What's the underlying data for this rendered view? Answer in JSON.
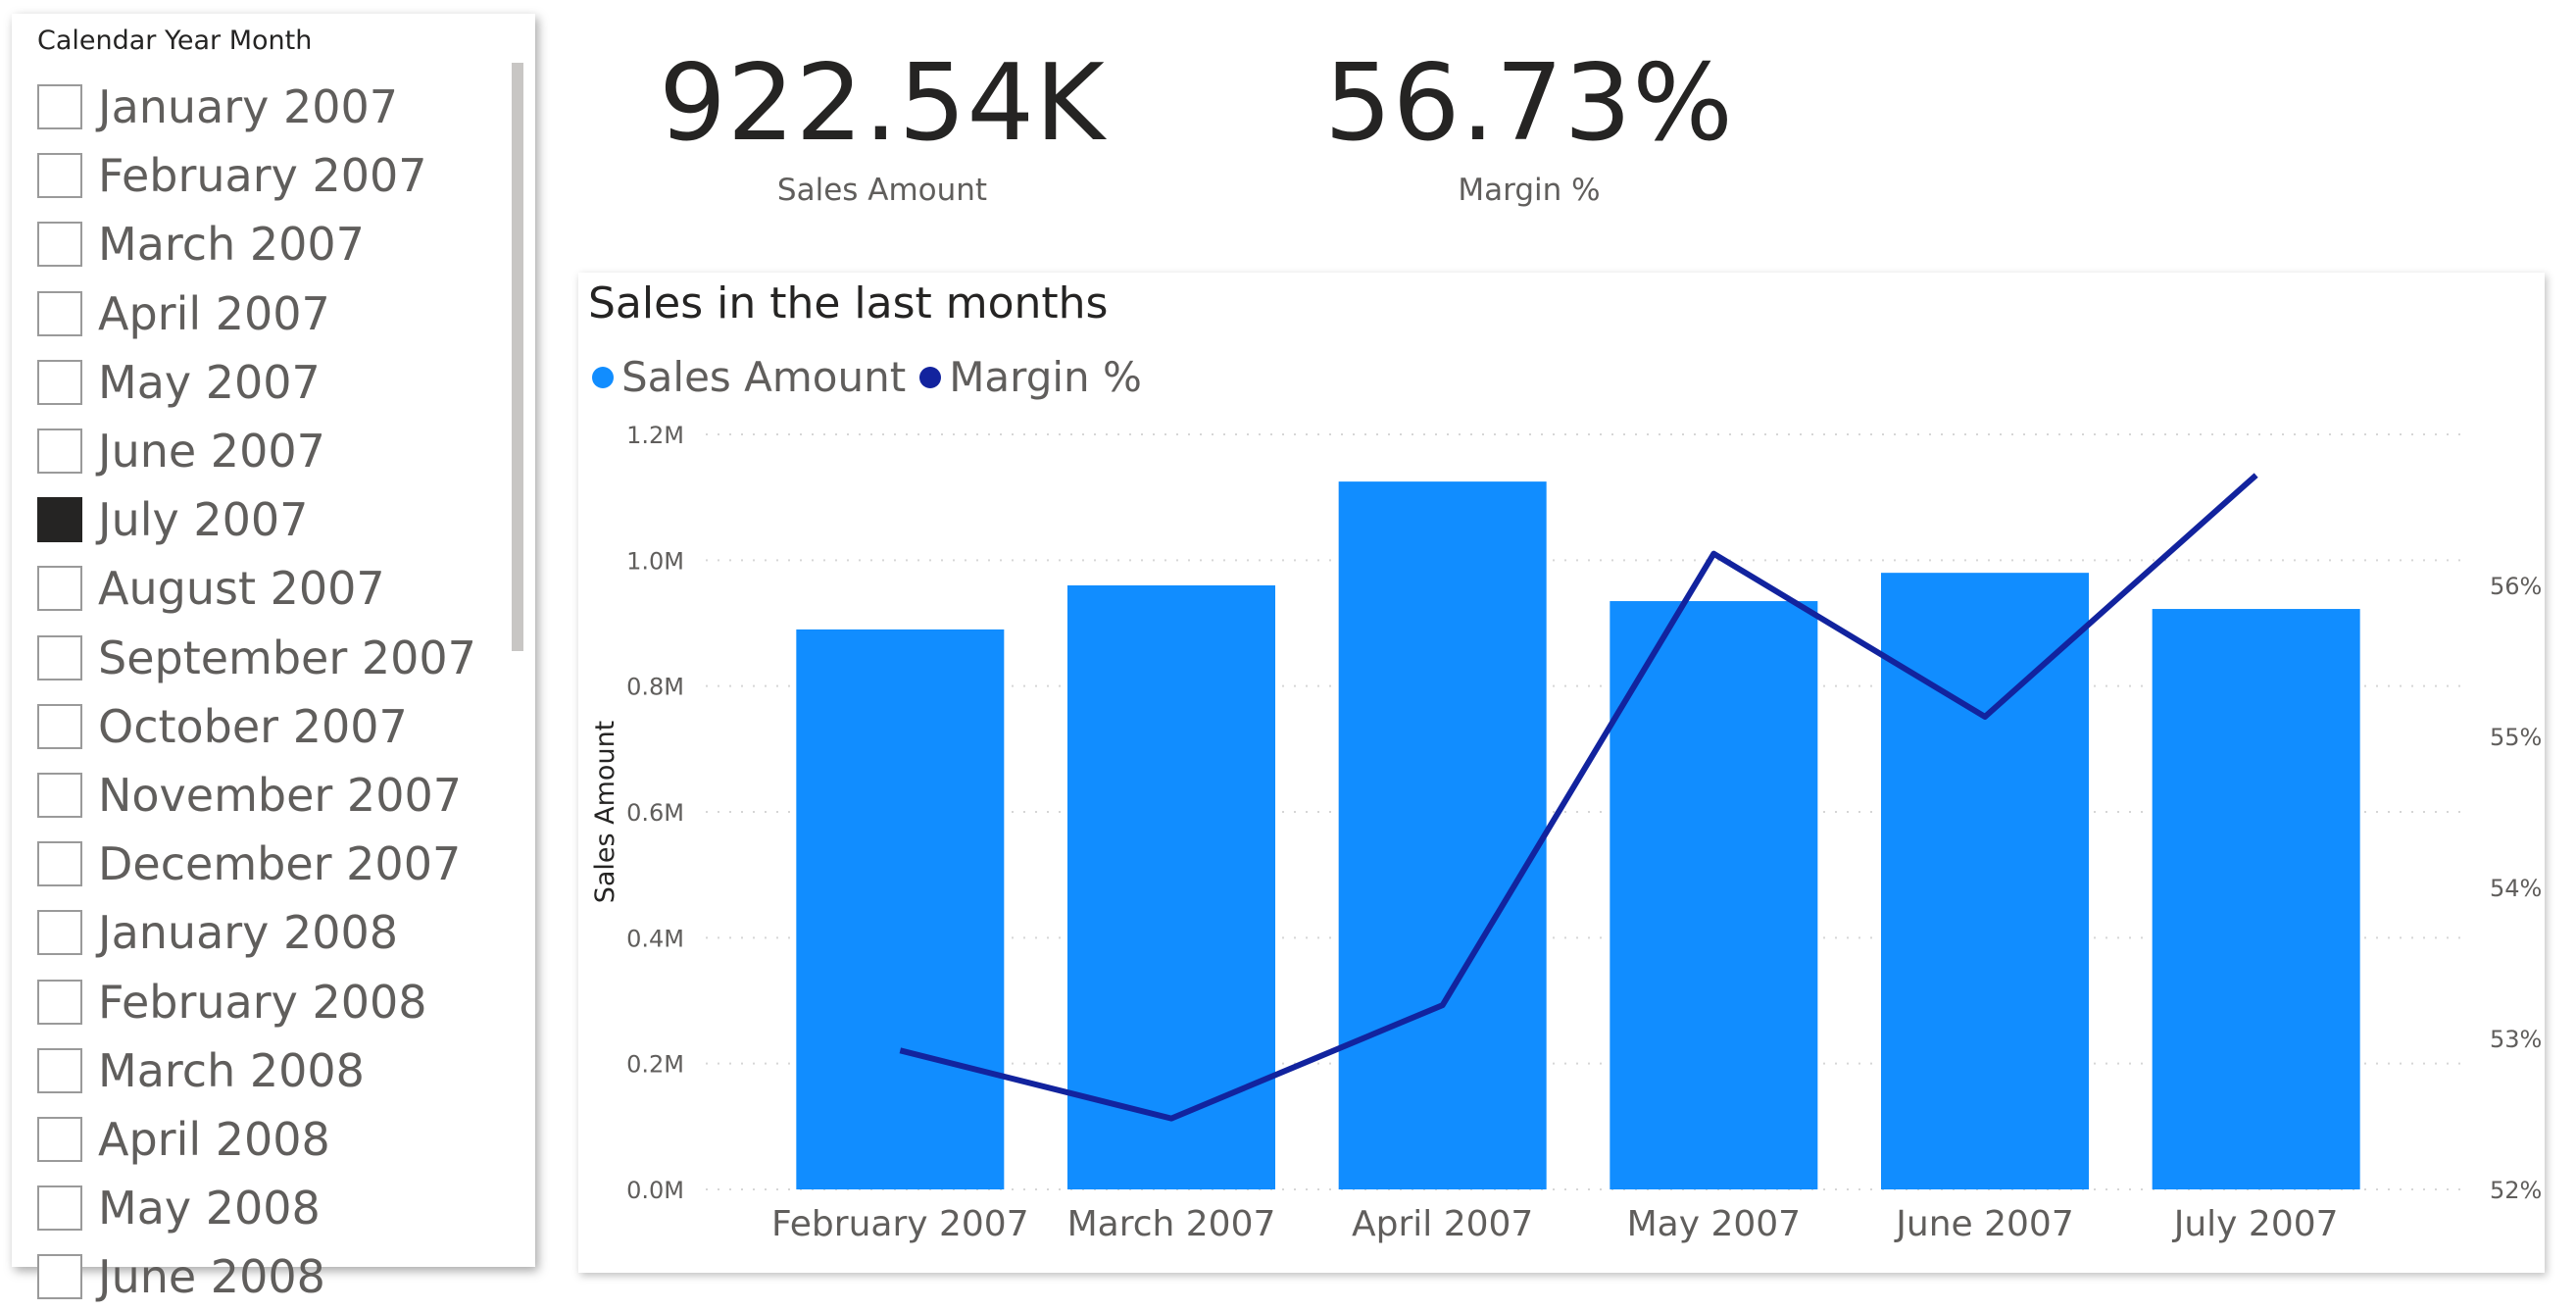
{
  "slicer": {
    "title": "Calendar Year Month",
    "items": [
      {
        "label": "January 2007",
        "checked": false
      },
      {
        "label": "February 2007",
        "checked": false
      },
      {
        "label": "March 2007",
        "checked": false
      },
      {
        "label": "April 2007",
        "checked": false
      },
      {
        "label": "May 2007",
        "checked": false
      },
      {
        "label": "June 2007",
        "checked": false
      },
      {
        "label": "July 2007",
        "checked": true
      },
      {
        "label": "August 2007",
        "checked": false
      },
      {
        "label": "September 2007",
        "checked": false
      },
      {
        "label": "October 2007",
        "checked": false
      },
      {
        "label": "November 2007",
        "checked": false
      },
      {
        "label": "December 2007",
        "checked": false
      },
      {
        "label": "January 2008",
        "checked": false
      },
      {
        "label": "February 2008",
        "checked": false
      },
      {
        "label": "March 2008",
        "checked": false
      },
      {
        "label": "April 2008",
        "checked": false
      },
      {
        "label": "May 2008",
        "checked": false
      },
      {
        "label": "June 2008",
        "checked": false
      }
    ]
  },
  "cards": {
    "sales": {
      "value": "922.54K",
      "label": "Sales Amount"
    },
    "margin": {
      "value": "56.73%",
      "label": "Margin %"
    }
  },
  "chart_data": {
    "type": "bar",
    "title": "Sales in the last months",
    "categories": [
      "February 2007",
      "March 2007",
      "April 2007",
      "May 2007",
      "June 2007",
      "July 2007"
    ],
    "series": [
      {
        "name": "Sales Amount",
        "type": "bar",
        "axis": "left",
        "color": "#118DFF",
        "values": [
          890000,
          960000,
          1125000,
          935000,
          980000,
          922540
        ]
      },
      {
        "name": "Margin %",
        "type": "line",
        "axis": "right",
        "color": "#12239E",
        "values": [
          52.92,
          52.47,
          53.22,
          56.21,
          55.13,
          56.73
        ]
      }
    ],
    "ylabel": "Sales Amount",
    "ylim": [
      0,
      1200000
    ],
    "yticks": [
      "0.0M",
      "0.2M",
      "0.4M",
      "0.6M",
      "0.8M",
      "1.0M",
      "1.2M"
    ],
    "y2lim": [
      52,
      57
    ],
    "y2ticks": [
      "52%",
      "53%",
      "54%",
      "55%",
      "56%"
    ],
    "grid": true,
    "legend": "top-left"
  },
  "colors": {
    "bar": "#118DFF",
    "line": "#12239E",
    "text": "#252423",
    "muted": "#605e5c"
  }
}
